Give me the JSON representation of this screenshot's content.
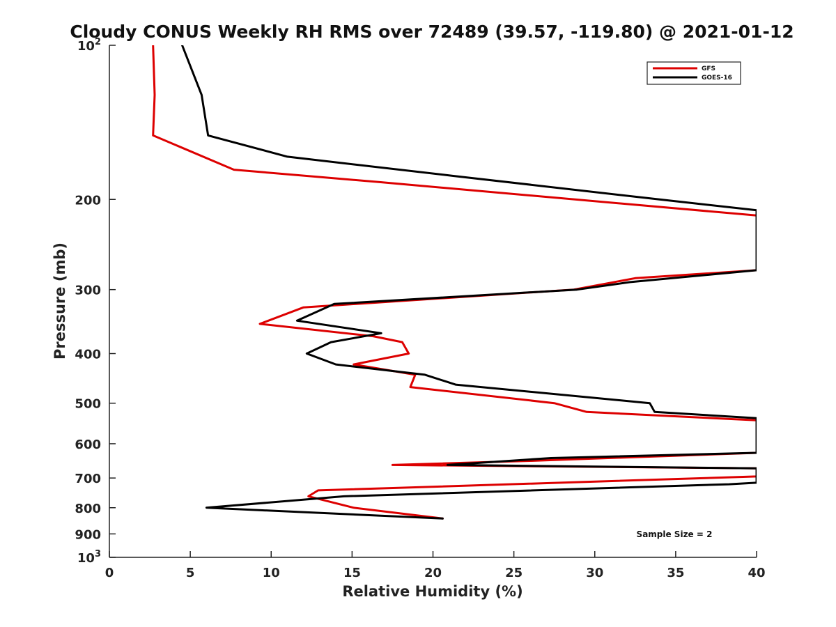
{
  "chart_data": {
    "type": "line",
    "title": "Cloudy CONUS Weekly RH RMS over 72489 (39.57, -119.80) @ 2021-01-12",
    "xlabel": "Relative Humidity (%)",
    "ylabel": "Pressure (mb)",
    "xlim": [
      0,
      40
    ],
    "ylim": [
      100,
      1000
    ],
    "y_scale": "log",
    "y_reversed": true,
    "x_ticks": [
      "0",
      "5",
      "10",
      "15",
      "20",
      "25",
      "30",
      "35",
      "40"
    ],
    "y_ticks": [
      {
        "value": 100,
        "base": "10",
        "exp": "2"
      },
      {
        "value": 200,
        "label": "200"
      },
      {
        "value": 300,
        "label": "300"
      },
      {
        "value": 400,
        "label": "400"
      },
      {
        "value": 500,
        "label": "500"
      },
      {
        "value": 600,
        "label": "600"
      },
      {
        "value": 700,
        "label": "700"
      },
      {
        "value": 800,
        "label": "800"
      },
      {
        "value": 900,
        "label": "900"
      },
      {
        "value": 1000,
        "base": "10",
        "exp": "3"
      }
    ],
    "grid": false,
    "legend_position": "top-right",
    "annotation": "Sample Size = 2",
    "series": [
      {
        "name": "GFS",
        "color": "#dd0000",
        "points": [
          [
            2.7,
            100
          ],
          [
            2.8,
            125
          ],
          [
            2.7,
            150
          ],
          [
            7.7,
            175
          ],
          [
            16.7,
            185
          ],
          [
            40,
            215
          ],
          [
            40,
            275
          ],
          [
            32.5,
            285
          ],
          [
            28.7,
            300
          ],
          [
            12.0,
            325
          ],
          [
            9.3,
            350
          ],
          [
            16.3,
            370
          ],
          [
            18.1,
            380
          ],
          [
            18.5,
            400
          ],
          [
            15.1,
            420
          ],
          [
            18.9,
            440
          ],
          [
            18.6,
            465
          ],
          [
            27.5,
            500
          ],
          [
            29.5,
            520
          ],
          [
            40,
            540
          ],
          [
            40,
            625
          ],
          [
            26.0,
            648
          ],
          [
            17.5,
            660
          ],
          [
            40,
            670
          ],
          [
            40,
            695
          ],
          [
            12.9,
            740
          ],
          [
            12.3,
            760
          ],
          [
            15.1,
            800
          ],
          [
            20.6,
            840
          ]
        ]
      },
      {
        "name": "GOES-16",
        "color": "#000000",
        "points": [
          [
            4.5,
            100
          ],
          [
            5.7,
            125
          ],
          [
            6.1,
            150
          ],
          [
            11.0,
            165
          ],
          [
            21.3,
            180
          ],
          [
            34.0,
            200
          ],
          [
            40,
            210
          ],
          [
            40,
            275
          ],
          [
            32.2,
            290
          ],
          [
            28.9,
            300
          ],
          [
            13.9,
            320
          ],
          [
            11.6,
            345
          ],
          [
            16.8,
            365
          ],
          [
            13.7,
            380
          ],
          [
            12.2,
            400
          ],
          [
            14.0,
            420
          ],
          [
            19.5,
            440
          ],
          [
            21.4,
            460
          ],
          [
            33.4,
            500
          ],
          [
            33.7,
            520
          ],
          [
            40,
            535
          ],
          [
            40,
            625
          ],
          [
            27.3,
            640
          ],
          [
            20.9,
            660
          ],
          [
            40,
            670
          ],
          [
            40,
            715
          ],
          [
            38.3,
            720
          ],
          [
            14.5,
            760
          ],
          [
            6.0,
            800
          ],
          [
            20.6,
            840
          ]
        ]
      }
    ]
  }
}
